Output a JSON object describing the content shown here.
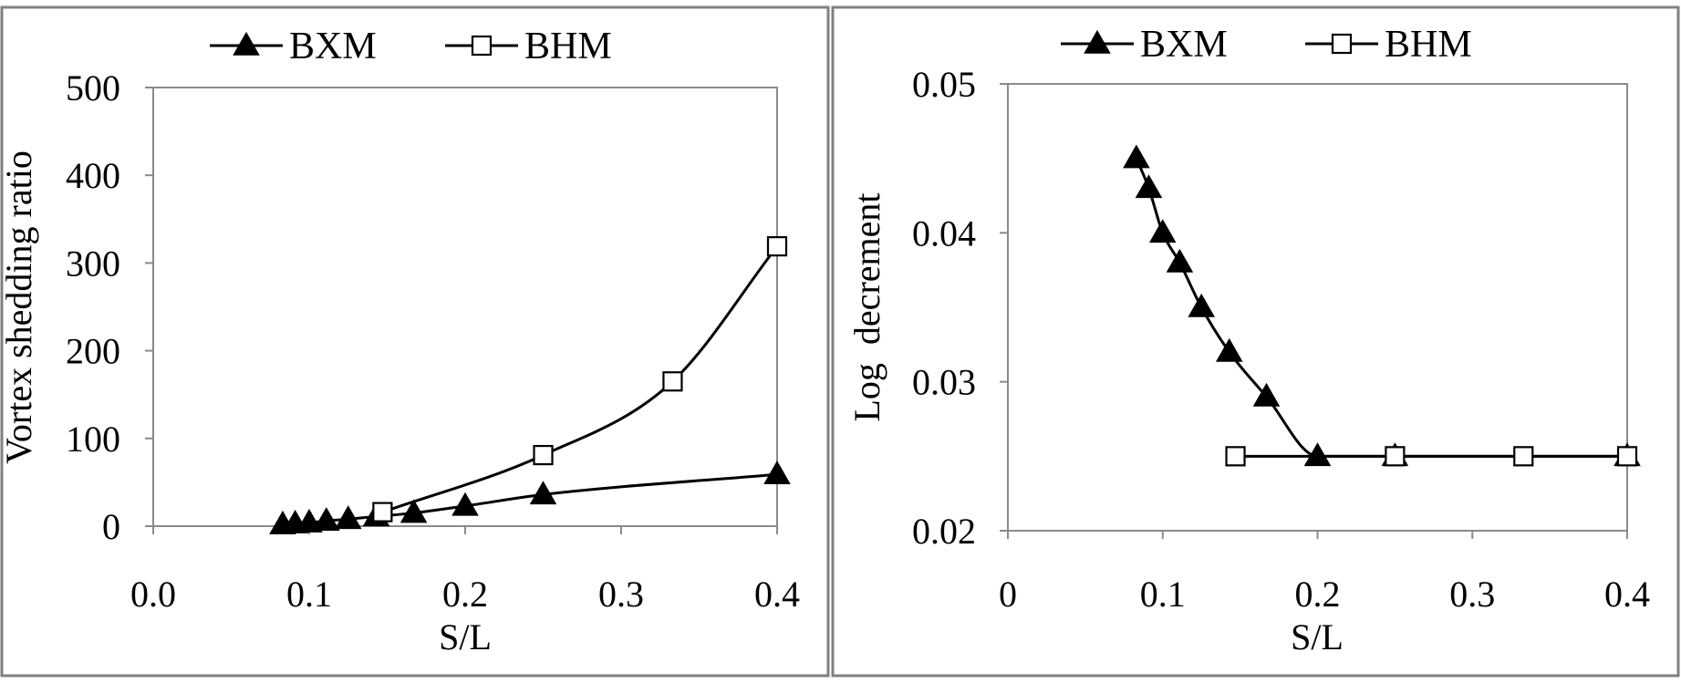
{
  "chart_data": [
    {
      "type": "line",
      "xlabel": "S/L",
      "ylabel": "Vortex shedding ratio",
      "xlim": [
        0,
        0.4
      ],
      "ylim": [
        0,
        500
      ],
      "x_ticks": [
        0,
        0.1,
        0.2,
        0.3,
        0.4
      ],
      "x_tick_labels": [
        "0.0",
        "0.1",
        "0.2",
        "0.3",
        "0.4"
      ],
      "y_ticks": [
        0,
        100,
        200,
        300,
        400,
        500
      ],
      "y_tick_labels": [
        "0",
        "100",
        "200",
        "300",
        "400",
        "500"
      ],
      "grid": false,
      "legend": "top",
      "series": [
        {
          "name": "BXM",
          "marker": "filled-triangle",
          "x": [
            0.083,
            0.091,
            0.1,
            0.111,
            0.125,
            0.143,
            0.167,
            0.2,
            0.25,
            0.4
          ],
          "y": [
            2,
            3,
            4,
            6,
            8,
            11,
            15,
            23,
            36,
            59
          ]
        },
        {
          "name": "BHM",
          "marker": "open-square",
          "x": [
            0.147,
            0.25,
            0.333,
            0.4
          ],
          "y": [
            16,
            81,
            165,
            319
          ]
        }
      ]
    },
    {
      "type": "line",
      "xlabel": "S/L",
      "ylabel": "Log  decrement",
      "xlim": [
        0,
        0.4
      ],
      "ylim": [
        0.02,
        0.05
      ],
      "x_ticks": [
        0,
        0.1,
        0.2,
        0.3,
        0.4
      ],
      "x_tick_labels": [
        "0",
        "0.1",
        "0.2",
        "0.3",
        "0.4"
      ],
      "y_ticks": [
        0.02,
        0.03,
        0.04,
        0.05
      ],
      "y_tick_labels": [
        "0.02",
        "0.03",
        "0.04",
        "0.05"
      ],
      "grid": false,
      "legend": "top",
      "series": [
        {
          "name": "BXM",
          "marker": "filled-triangle",
          "x": [
            0.083,
            0.091,
            0.1,
            0.111,
            0.125,
            0.143,
            0.167,
            0.2,
            0.25,
            0.4
          ],
          "y": [
            0.045,
            0.043,
            0.04,
            0.038,
            0.035,
            0.032,
            0.029,
            0.025,
            0.025,
            0.025
          ]
        },
        {
          "name": "BHM",
          "marker": "open-square",
          "x": [
            0.147,
            0.25,
            0.333,
            0.4
          ],
          "y": [
            0.025,
            0.025,
            0.025,
            0.025
          ]
        }
      ]
    }
  ]
}
